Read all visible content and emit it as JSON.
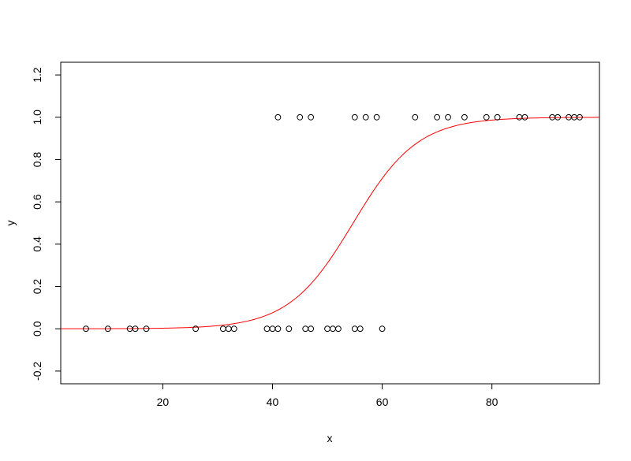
{
  "chart_data": {
    "type": "scatter",
    "title": "",
    "xlabel": "x",
    "ylabel": "y",
    "xlim": [
      1.4,
      99.6
    ],
    "ylim": [
      -0.26,
      1.26
    ],
    "xticks": [
      20,
      40,
      60,
      80
    ],
    "yticks": [
      -0.2,
      0.0,
      0.2,
      0.4,
      0.6,
      0.8,
      1.0,
      1.2
    ],
    "ytick_labels": [
      "-0.2",
      "0.0",
      "0.2",
      "0.4",
      "0.6",
      "0.8",
      "1.0",
      "1.2"
    ],
    "grid": false,
    "legend": "none",
    "points": {
      "marker": "open-circle",
      "color": "#000000",
      "x": [
        6,
        10,
        14,
        15,
        17,
        26,
        31,
        32,
        33,
        39,
        40,
        41,
        43,
        46,
        47,
        50,
        51,
        52,
        55,
        56,
        60,
        41,
        45,
        47,
        55,
        57,
        59,
        66,
        70,
        72,
        75,
        79,
        81,
        85,
        86,
        91,
        92,
        94,
        95,
        96
      ],
      "y": [
        0,
        0,
        0,
        0,
        0,
        0,
        0,
        0,
        0,
        0,
        0,
        0,
        0,
        0,
        0,
        0,
        0,
        0,
        0,
        0,
        0,
        1,
        1,
        1,
        1,
        1,
        1,
        1,
        1,
        1,
        1,
        1,
        1,
        1,
        1,
        1,
        1,
        1,
        1,
        1
      ]
    },
    "curve": {
      "type": "logistic",
      "color": "#ff0000",
      "intercept": -9.3,
      "slope": 0.17,
      "x_range": [
        1.4,
        99.6
      ]
    }
  }
}
